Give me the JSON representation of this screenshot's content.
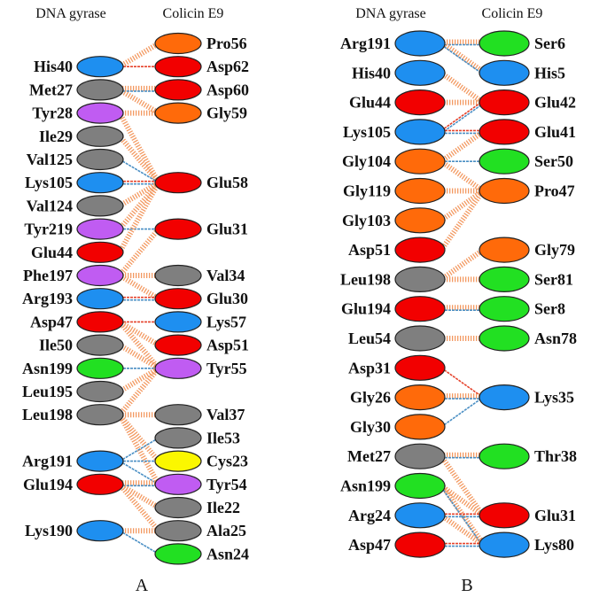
{
  "colors": {
    "blue": "#1e8ff0",
    "gray": "#7f7f7f",
    "purple": "#c05cf2",
    "red": "#f20000",
    "orange": "#ff6a0a",
    "green": "#22e022",
    "yellow": "#fbf700",
    "link_orange": "#f39a62",
    "link_red": "#e5432c",
    "link_blue": "#4a8fc4"
  },
  "panels": [
    {
      "letter": "A",
      "left_header": "DNA gyrase",
      "right_header": "Colicin E9",
      "left": [
        {
          "name": "His40",
          "color": "blue"
        },
        {
          "name": "Met27",
          "color": "gray"
        },
        {
          "name": "Tyr28",
          "color": "purple"
        },
        {
          "name": "Ile29",
          "color": "gray"
        },
        {
          "name": "Val125",
          "color": "gray"
        },
        {
          "name": "Lys105",
          "color": "blue"
        },
        {
          "name": "Val124",
          "color": "gray"
        },
        {
          "name": "Tyr219",
          "color": "purple"
        },
        {
          "name": "Glu44",
          "color": "red"
        },
        {
          "name": "Phe197",
          "color": "purple"
        },
        {
          "name": "Arg193",
          "color": "blue"
        },
        {
          "name": "Asp47",
          "color": "red"
        },
        {
          "name": "Ile50",
          "color": "gray"
        },
        {
          "name": "Asn199",
          "color": "green"
        },
        {
          "name": "Leu195",
          "color": "gray"
        },
        {
          "name": "Leu198",
          "color": "gray"
        },
        {
          "name": "Arg191",
          "color": "blue"
        },
        {
          "name": "Glu194",
          "color": "red"
        },
        {
          "name": "Lys190",
          "color": "blue"
        }
      ],
      "right": [
        {
          "name": "Pro56",
          "color": "orange"
        },
        {
          "name": "Asp62",
          "color": "red"
        },
        {
          "name": "Asp60",
          "color": "red"
        },
        {
          "name": "Gly59",
          "color": "orange"
        },
        {
          "name": "Glu58",
          "color": "red"
        },
        {
          "name": "Glu31",
          "color": "red"
        },
        {
          "name": "Val34",
          "color": "gray"
        },
        {
          "name": "Glu30",
          "color": "red"
        },
        {
          "name": "Lys57",
          "color": "blue"
        },
        {
          "name": "Asp51",
          "color": "red"
        },
        {
          "name": "Tyr55",
          "color": "purple"
        },
        {
          "name": "Val37",
          "color": "gray"
        },
        {
          "name": "Ile53",
          "color": "gray"
        },
        {
          "name": "Cys23",
          "color": "yellow"
        },
        {
          "name": "Tyr54",
          "color": "purple"
        },
        {
          "name": "Ile22",
          "color": "gray"
        },
        {
          "name": "Ala25",
          "color": "gray"
        },
        {
          "name": "Asn24",
          "color": "green"
        }
      ],
      "links": [
        [
          "His40",
          "Pro56",
          "o"
        ],
        [
          "His40",
          "Asp62",
          "r"
        ],
        [
          "Met27",
          "Asp60",
          "ob"
        ],
        [
          "Met27",
          "Gly59",
          "o"
        ],
        [
          "Tyr28",
          "Gly59",
          "o"
        ],
        [
          "Tyr28",
          "Glu58",
          "o"
        ],
        [
          "Ile29",
          "Glu58",
          "o"
        ],
        [
          "Val125",
          "Glu58",
          "b"
        ],
        [
          "Lys105",
          "Glu58",
          "rb"
        ],
        [
          "Val124",
          "Glu58",
          "o"
        ],
        [
          "Tyr219",
          "Glu58",
          "o"
        ],
        [
          "Tyr219",
          "Glu31",
          "b"
        ],
        [
          "Glu44",
          "Glu58",
          "o"
        ],
        [
          "Phe197",
          "Glu31",
          "o"
        ],
        [
          "Phe197",
          "Val34",
          "o"
        ],
        [
          "Phe197",
          "Glu30",
          "o"
        ],
        [
          "Arg193",
          "Glu30",
          "rb"
        ],
        [
          "Asp47",
          "Lys57",
          "r"
        ],
        [
          "Asp47",
          "Asp51",
          "o"
        ],
        [
          "Asp47",
          "Tyr55",
          "o"
        ],
        [
          "Ile50",
          "Tyr55",
          "o"
        ],
        [
          "Asn199",
          "Tyr55",
          "b"
        ],
        [
          "Leu195",
          "Tyr55",
          "o"
        ],
        [
          "Leu198",
          "Tyr55",
          "o"
        ],
        [
          "Leu198",
          "Val37",
          "o"
        ],
        [
          "Leu198",
          "Cys23",
          "o"
        ],
        [
          "Leu198",
          "Tyr54",
          "o"
        ],
        [
          "Arg191",
          "Ile53",
          "b"
        ],
        [
          "Arg191",
          "Cys23",
          "b"
        ],
        [
          "Arg191",
          "Tyr54",
          "b"
        ],
        [
          "Glu194",
          "Tyr54",
          "ob"
        ],
        [
          "Glu194",
          "Ile22",
          "o"
        ],
        [
          "Glu194",
          "Ala25",
          "o"
        ],
        [
          "Lys190",
          "Ala25",
          "o"
        ],
        [
          "Lys190",
          "Asn24",
          "b"
        ]
      ]
    },
    {
      "letter": "B",
      "left_header": "DNA gyrase",
      "right_header": "Colicin E9",
      "left": [
        {
          "name": "Arg191",
          "color": "blue"
        },
        {
          "name": "His40",
          "color": "blue"
        },
        {
          "name": "Glu44",
          "color": "red"
        },
        {
          "name": "Lys105",
          "color": "blue"
        },
        {
          "name": "Gly104",
          "color": "orange"
        },
        {
          "name": "Gly119",
          "color": "orange"
        },
        {
          "name": "Gly103",
          "color": "orange"
        },
        {
          "name": "Asp51",
          "color": "red"
        },
        {
          "name": "Leu198",
          "color": "gray"
        },
        {
          "name": "Glu194",
          "color": "red"
        },
        {
          "name": "Leu54",
          "color": "gray"
        },
        {
          "name": "Asp31",
          "color": "red"
        },
        {
          "name": "Gly26",
          "color": "orange"
        },
        {
          "name": "Gly30",
          "color": "orange"
        },
        {
          "name": "Met27",
          "color": "gray"
        },
        {
          "name": "Asn199",
          "color": "green"
        },
        {
          "name": "Arg24",
          "color": "blue"
        },
        {
          "name": "Asp47",
          "color": "red"
        }
      ],
      "right": [
        {
          "name": "Ser6",
          "color": "green"
        },
        {
          "name": "His5",
          "color": "blue"
        },
        {
          "name": "Glu42",
          "color": "red"
        },
        {
          "name": "Glu41",
          "color": "red"
        },
        {
          "name": "Ser50",
          "color": "green"
        },
        {
          "name": "Pro47",
          "color": "orange"
        },
        {
          "name": "Gly79",
          "color": "orange"
        },
        {
          "name": "Ser81",
          "color": "green"
        },
        {
          "name": "Ser8",
          "color": "green"
        },
        {
          "name": "Asn78",
          "color": "green"
        },
        {
          "name": "Lys35",
          "color": "blue"
        },
        {
          "name": "Thr38",
          "color": "green"
        },
        {
          "name": "Glu31",
          "color": "red"
        },
        {
          "name": "Lys80",
          "color": "blue"
        }
      ],
      "links": [
        [
          "Arg191",
          "Ser6",
          "ob"
        ],
        [
          "Arg191",
          "His5",
          "ob"
        ],
        [
          "His40",
          "Glu42",
          "o"
        ],
        [
          "Glu44",
          "Glu42",
          "o"
        ],
        [
          "Lys105",
          "Glu42",
          "rb"
        ],
        [
          "Lys105",
          "Glu41",
          "rb"
        ],
        [
          "Gly104",
          "Glu41",
          "o"
        ],
        [
          "Gly104",
          "Ser50",
          "b"
        ],
        [
          "Gly104",
          "Pro47",
          "o"
        ],
        [
          "Gly119",
          "Pro47",
          "o"
        ],
        [
          "Gly103",
          "Pro47",
          "o"
        ],
        [
          "Asp51",
          "Pro47",
          "o"
        ],
        [
          "Leu198",
          "Gly79",
          "o"
        ],
        [
          "Leu198",
          "Ser81",
          "o"
        ],
        [
          "Glu194",
          "Ser8",
          "ob"
        ],
        [
          "Leu54",
          "Asn78",
          "o"
        ],
        [
          "Asp31",
          "Lys35",
          "r"
        ],
        [
          "Gly26",
          "Lys35",
          "ob"
        ],
        [
          "Gly30",
          "Lys35",
          "b"
        ],
        [
          "Met27",
          "Thr38",
          "ob"
        ],
        [
          "Met27",
          "Glu31",
          "o"
        ],
        [
          "Asn199",
          "Glu31",
          "o"
        ],
        [
          "Asn199",
          "Lys80",
          "ob"
        ],
        [
          "Arg24",
          "Glu31",
          "rb"
        ],
        [
          "Arg24",
          "Lys80",
          "o"
        ],
        [
          "Asp47",
          "Lys80",
          "rb"
        ]
      ]
    }
  ]
}
